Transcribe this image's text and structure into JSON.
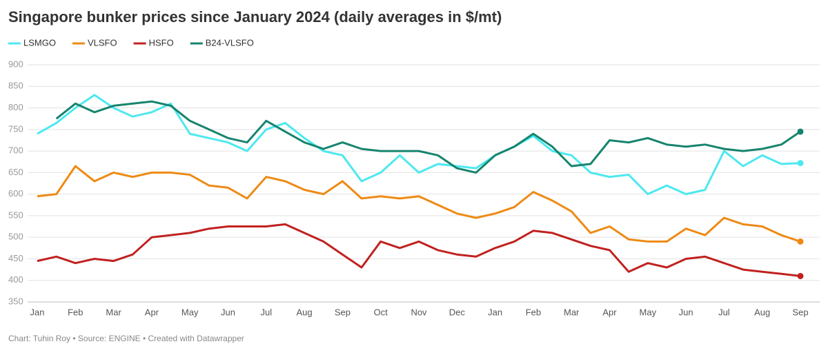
{
  "chart_data": {
    "type": "line",
    "title": "Singapore bunker prices since January 2024 (daily averages in $/mt)",
    "source": "Chart: Tuhin Roy • Source: ENGINE • Created with Datawrapper",
    "categories": [
      "Jan",
      null,
      "Feb",
      null,
      "Mar",
      null,
      "Apr",
      null,
      "May",
      null,
      "Jun",
      null,
      "Jul",
      null,
      "Aug",
      null,
      "Sep",
      null,
      "Oct",
      null,
      "Nov",
      null,
      "Dec",
      null,
      "Jan",
      null,
      "Feb",
      null,
      "Mar",
      null,
      "Apr",
      null,
      "May",
      null,
      "Jun",
      null,
      "Jul",
      null,
      "Aug",
      null,
      "Sep"
    ],
    "series": [
      {
        "name": "LSMGO",
        "color": "#4de8f0",
        "values": [
          740,
          765,
          800,
          830,
          800,
          780,
          790,
          810,
          740,
          730,
          720,
          700,
          750,
          765,
          730,
          700,
          690,
          630,
          650,
          690,
          650,
          670,
          665,
          660,
          690,
          710,
          735,
          700,
          690,
          650,
          640,
          645,
          600,
          620,
          600,
          610,
          700,
          665,
          690,
          670,
          672
        ]
      },
      {
        "name": "VLSFO",
        "color": "#ee8a14",
        "values": [
          595,
          600,
          665,
          630,
          650,
          640,
          650,
          650,
          645,
          620,
          615,
          590,
          640,
          630,
          610,
          600,
          630,
          590,
          595,
          590,
          595,
          575,
          555,
          545,
          555,
          570,
          605,
          585,
          560,
          510,
          525,
          495,
          490,
          490,
          520,
          505,
          545,
          530,
          525,
          505,
          490
        ]
      },
      {
        "name": "HSFO",
        "color": "#c0211f",
        "values": [
          445,
          455,
          440,
          450,
          445,
          460,
          500,
          505,
          510,
          520,
          525,
          525,
          525,
          530,
          510,
          490,
          460,
          430,
          490,
          475,
          490,
          470,
          460,
          455,
          475,
          490,
          515,
          510,
          495,
          480,
          470,
          420,
          440,
          430,
          450,
          455,
          440,
          425,
          420,
          415,
          410
        ]
      },
      {
        "name": "B24-VLSFO",
        "color": "#16846e",
        "values": [
          null,
          775,
          810,
          790,
          805,
          810,
          815,
          805,
          770,
          750,
          730,
          720,
          770,
          745,
          720,
          705,
          720,
          705,
          700,
          700,
          700,
          690,
          660,
          650,
          690,
          710,
          740,
          710,
          665,
          670,
          725,
          720,
          730,
          715,
          710,
          715,
          705,
          700,
          705,
          715,
          745
        ]
      }
    ],
    "ylim": [
      350,
      900
    ],
    "yticks": [
      350,
      400,
      450,
      500,
      550,
      600,
      650,
      700,
      750,
      800,
      850,
      900
    ],
    "grid": true
  }
}
